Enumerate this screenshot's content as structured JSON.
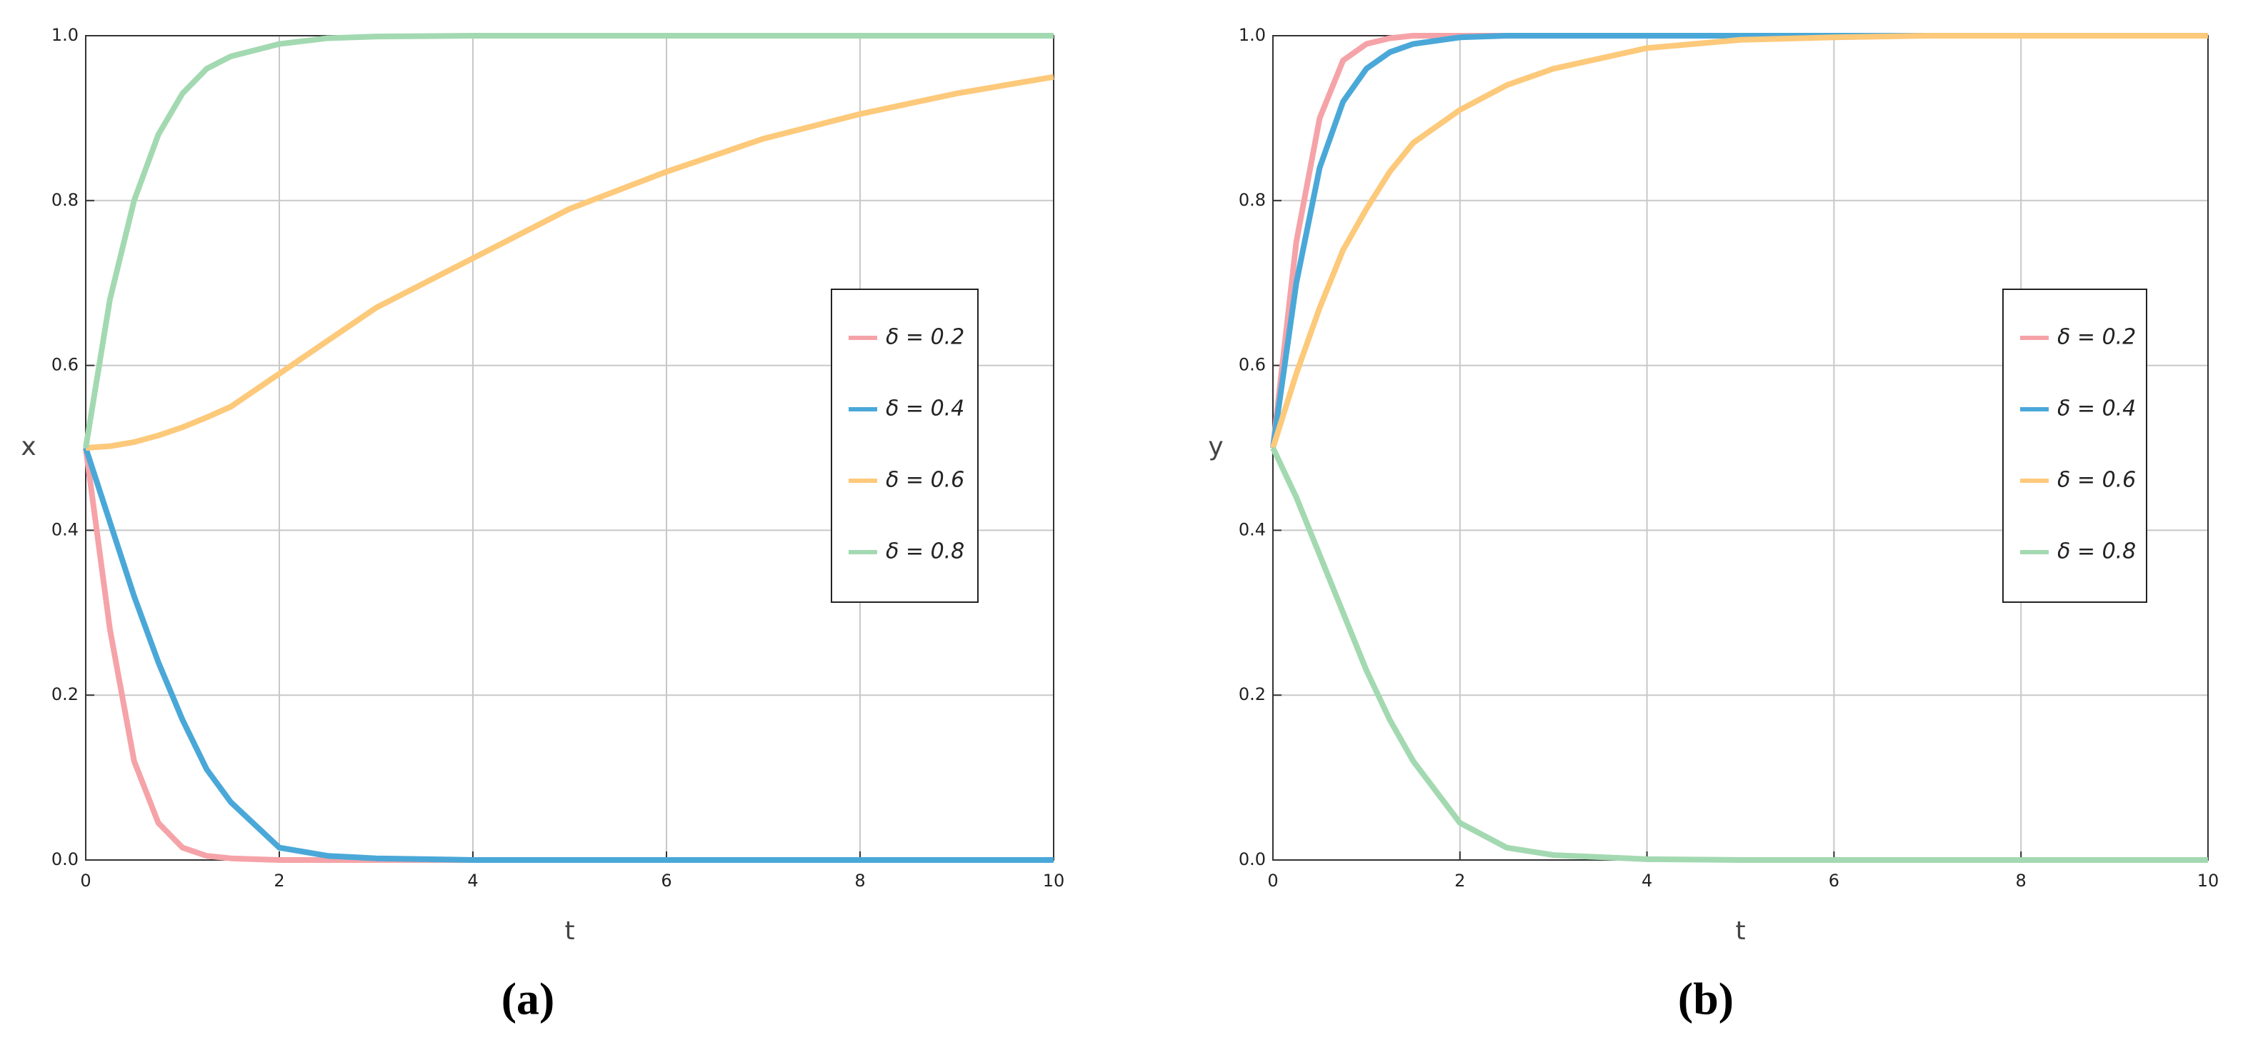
{
  "chart_data": [
    {
      "type": "line",
      "caption": "(a)",
      "xlabel": "t",
      "ylabel": "x",
      "x": [
        0,
        0.25,
        0.5,
        0.75,
        1,
        1.25,
        1.5,
        2,
        2.5,
        3,
        4,
        5,
        6,
        7,
        8,
        9,
        10
      ],
      "series": [
        {
          "name": "δ = 0.2",
          "color": "#f5a3a8",
          "values": [
            0.5,
            0.28,
            0.12,
            0.045,
            0.015,
            0.005,
            0.002,
            0,
            0,
            0,
            0,
            0,
            0,
            0,
            0,
            0,
            0
          ]
        },
        {
          "name": "δ = 0.4",
          "color": "#4aa8d8",
          "values": [
            0.5,
            0.41,
            0.32,
            0.24,
            0.17,
            0.11,
            0.07,
            0.015,
            0.005,
            0.002,
            0,
            0,
            0,
            0,
            0,
            0,
            0
          ]
        },
        {
          "name": "δ = 0.6",
          "color": "#fdc97a",
          "values": [
            0.5,
            0.502,
            0.507,
            0.515,
            0.525,
            0.537,
            0.55,
            0.59,
            0.63,
            0.67,
            0.73,
            0.79,
            0.835,
            0.875,
            0.905,
            0.93,
            0.95
          ]
        },
        {
          "name": "δ = 0.8",
          "color": "#a3d9b1",
          "values": [
            0.5,
            0.68,
            0.8,
            0.88,
            0.93,
            0.96,
            0.975,
            0.99,
            0.997,
            0.999,
            1,
            1,
            1,
            1,
            1,
            1,
            1
          ]
        }
      ],
      "xlim": [
        0,
        10
      ],
      "xticks": [
        0,
        2,
        4,
        6,
        8,
        10
      ],
      "ylim": [
        0,
        1
      ],
      "yticks": [
        {
          "value": 0,
          "label": "0.0"
        },
        0.2,
        0.4,
        0.6,
        0.8,
        {
          "value": 1,
          "label": "1.0"
        }
      ],
      "grid": true,
      "legend": "right"
    },
    {
      "type": "line",
      "caption": "(b)",
      "xlabel": "t",
      "ylabel": "y",
      "x": [
        0,
        0.25,
        0.5,
        0.75,
        1,
        1.25,
        1.5,
        2,
        2.5,
        3,
        4,
        5,
        6,
        7,
        8,
        9,
        10
      ],
      "series": [
        {
          "name": "δ = 0.2",
          "color": "#f5a3a8",
          "values": [
            0.5,
            0.75,
            0.9,
            0.97,
            0.99,
            0.997,
            1,
            1,
            1,
            1,
            1,
            1,
            1,
            1,
            1,
            1,
            1
          ]
        },
        {
          "name": "δ = 0.4",
          "color": "#4aa8d8",
          "values": [
            0.5,
            0.7,
            0.84,
            0.92,
            0.96,
            0.98,
            0.99,
            0.998,
            1,
            1,
            1,
            1,
            1,
            1,
            1,
            1,
            1
          ]
        },
        {
          "name": "δ = 0.6",
          "color": "#fdc97a",
          "values": [
            0.5,
            0.59,
            0.67,
            0.74,
            0.79,
            0.835,
            0.87,
            0.91,
            0.94,
            0.96,
            0.985,
            0.995,
            0.998,
            1,
            1,
            1,
            1
          ]
        },
        {
          "name": "δ = 0.8",
          "color": "#a3d9b1",
          "values": [
            0.5,
            0.44,
            0.37,
            0.3,
            0.23,
            0.17,
            0.12,
            0.045,
            0.015,
            0.006,
            0.001,
            0,
            0,
            0,
            0,
            0,
            0
          ]
        }
      ],
      "xlim": [
        0,
        10
      ],
      "xticks": [
        0,
        2,
        4,
        6,
        8,
        10
      ],
      "ylim": [
        0,
        1
      ],
      "yticks": [
        {
          "value": 0,
          "label": "0.0"
        },
        0.2,
        0.4,
        0.6,
        0.8,
        {
          "value": 1,
          "label": "1.0"
        }
      ],
      "grid": true,
      "legend": "right"
    }
  ]
}
